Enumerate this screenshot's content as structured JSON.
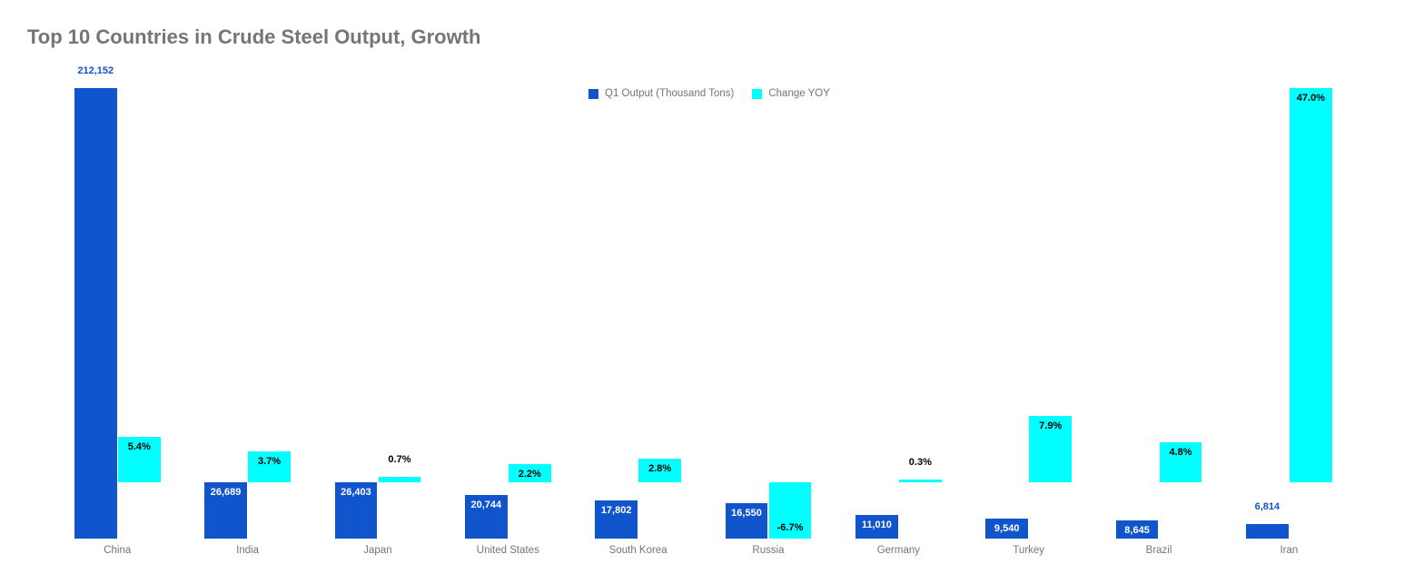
{
  "page": {
    "background": "#ffffff"
  },
  "chart_data": {
    "type": "bar",
    "title": "Top 10 Countries in Crude Steel Output, Growth",
    "title_color": "#757575",
    "categories": [
      "China",
      "India",
      "Japan",
      "United States",
      "South Korea",
      "Russia",
      "Germany",
      "Turkey",
      "Brazil",
      "Iran"
    ],
    "series": [
      {
        "name": "Q1 Output (Thousand Tons)",
        "color": "#1155CC",
        "axis": "tons",
        "values": [
          212152,
          26689,
          26403,
          20744,
          17802,
          16550,
          11010,
          9540,
          8645,
          6814
        ],
        "labels": [
          "212,152",
          "26,689",
          "26,403",
          "20,744",
          "17,802",
          "16,550",
          "11,010",
          "9,540",
          "8,645",
          "6,814"
        ],
        "label_placement": [
          "above",
          "inside",
          "inside",
          "inside",
          "inside",
          "inside",
          "inside",
          "inside",
          "inside",
          "above"
        ],
        "label_color_inside": "#ffffff",
        "label_color_outside": "#1155CC"
      },
      {
        "name": "Change YOY",
        "color": "#00FFFF",
        "axis": "percent",
        "values": [
          5.4,
          3.7,
          0.7,
          2.2,
          2.8,
          -6.7,
          0.3,
          7.9,
          4.8,
          47.0
        ],
        "labels": [
          "5.4%",
          "3.7%",
          "0.7%",
          "2.2%",
          "2.8%",
          "-6.7%",
          "0.3%",
          "7.9%",
          "4.8%",
          "47.0%"
        ],
        "label_placement": [
          "inside",
          "inside",
          "above",
          "inside",
          "inside",
          "inside-bottom",
          "above",
          "inside",
          "inside",
          "inside"
        ],
        "label_color_inside": "#000000",
        "label_color_outside": "#000000"
      }
    ],
    "legend": {
      "position": "top",
      "items": [
        "Q1 Output (Thousand Tons)",
        "Change YOY"
      ]
    },
    "axes": {
      "x": {
        "label_color": "#757575",
        "gridlines": false,
        "axis_line": false
      },
      "tons": {
        "min": 0,
        "max": 212152,
        "visible": false
      },
      "percent": {
        "min": -6.7,
        "max": 47.0,
        "visible": false
      }
    }
  }
}
